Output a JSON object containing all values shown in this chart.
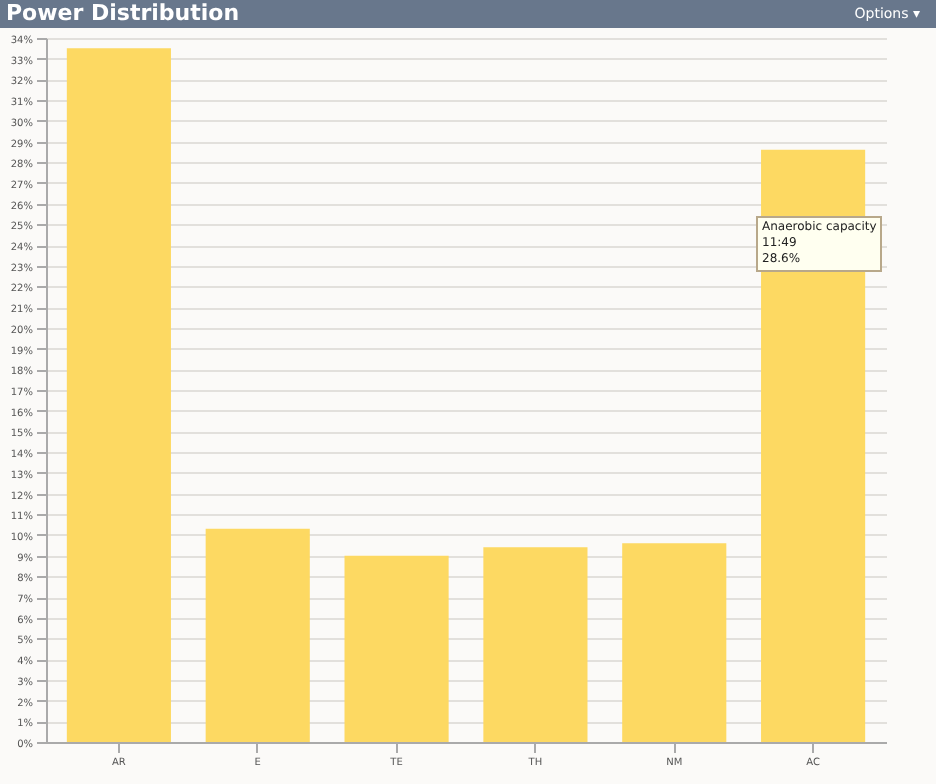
{
  "chart_data": {
    "type": "bar",
    "title": "Power Distribution",
    "categories": [
      "AR",
      "E",
      "TE",
      "TH",
      "NM",
      "AC"
    ],
    "values": [
      33.5,
      10.3,
      9.0,
      9.4,
      9.6,
      28.6
    ],
    "color": "#fdd962",
    "ylim": [
      0,
      34
    ],
    "yticks": [
      {
        "value": 0,
        "label": "0%"
      },
      {
        "value": 1,
        "label": "1%"
      },
      {
        "value": 2,
        "label": "2%"
      },
      {
        "value": 3,
        "label": "3%"
      },
      {
        "value": 4,
        "label": "4%"
      },
      {
        "value": 5,
        "label": "5%"
      },
      {
        "value": 6,
        "label": "6%"
      },
      {
        "value": 7,
        "label": "7%"
      },
      {
        "value": 8,
        "label": "8%"
      },
      {
        "value": 9,
        "label": "9%"
      },
      {
        "value": 10,
        "label": "10%"
      },
      {
        "value": 11,
        "label": "11%"
      },
      {
        "value": 12,
        "label": "12%"
      },
      {
        "value": 13,
        "label": "13%"
      },
      {
        "value": 14,
        "label": "14%"
      },
      {
        "value": 15,
        "label": "15%"
      },
      {
        "value": 16,
        "label": "16%"
      },
      {
        "value": 17,
        "label": "17%"
      },
      {
        "value": 18,
        "label": "18%"
      },
      {
        "value": 19,
        "label": "19%"
      },
      {
        "value": 20,
        "label": "20%"
      },
      {
        "value": 21,
        "label": "21%"
      },
      {
        "value": 22,
        "label": "22%"
      },
      {
        "value": 23,
        "label": "23%"
      },
      {
        "value": 24,
        "label": "24%"
      },
      {
        "value": 25,
        "label": "25%"
      },
      {
        "value": 26,
        "label": "26%"
      },
      {
        "value": 27,
        "label": "27%"
      },
      {
        "value": 28,
        "label": "28%"
      },
      {
        "value": 29,
        "label": "29%"
      },
      {
        "value": 30,
        "label": "30%"
      },
      {
        "value": 31,
        "label": "31%"
      },
      {
        "value": 32,
        "label": "32%"
      },
      {
        "value": 33,
        "label": "33%"
      },
      {
        "value": 34,
        "label": "34%"
      }
    ],
    "grid": "y",
    "annotations": [
      "Options ▾",
      "Anaerobic capacity\n11:49\n28.6%"
    ]
  }
}
